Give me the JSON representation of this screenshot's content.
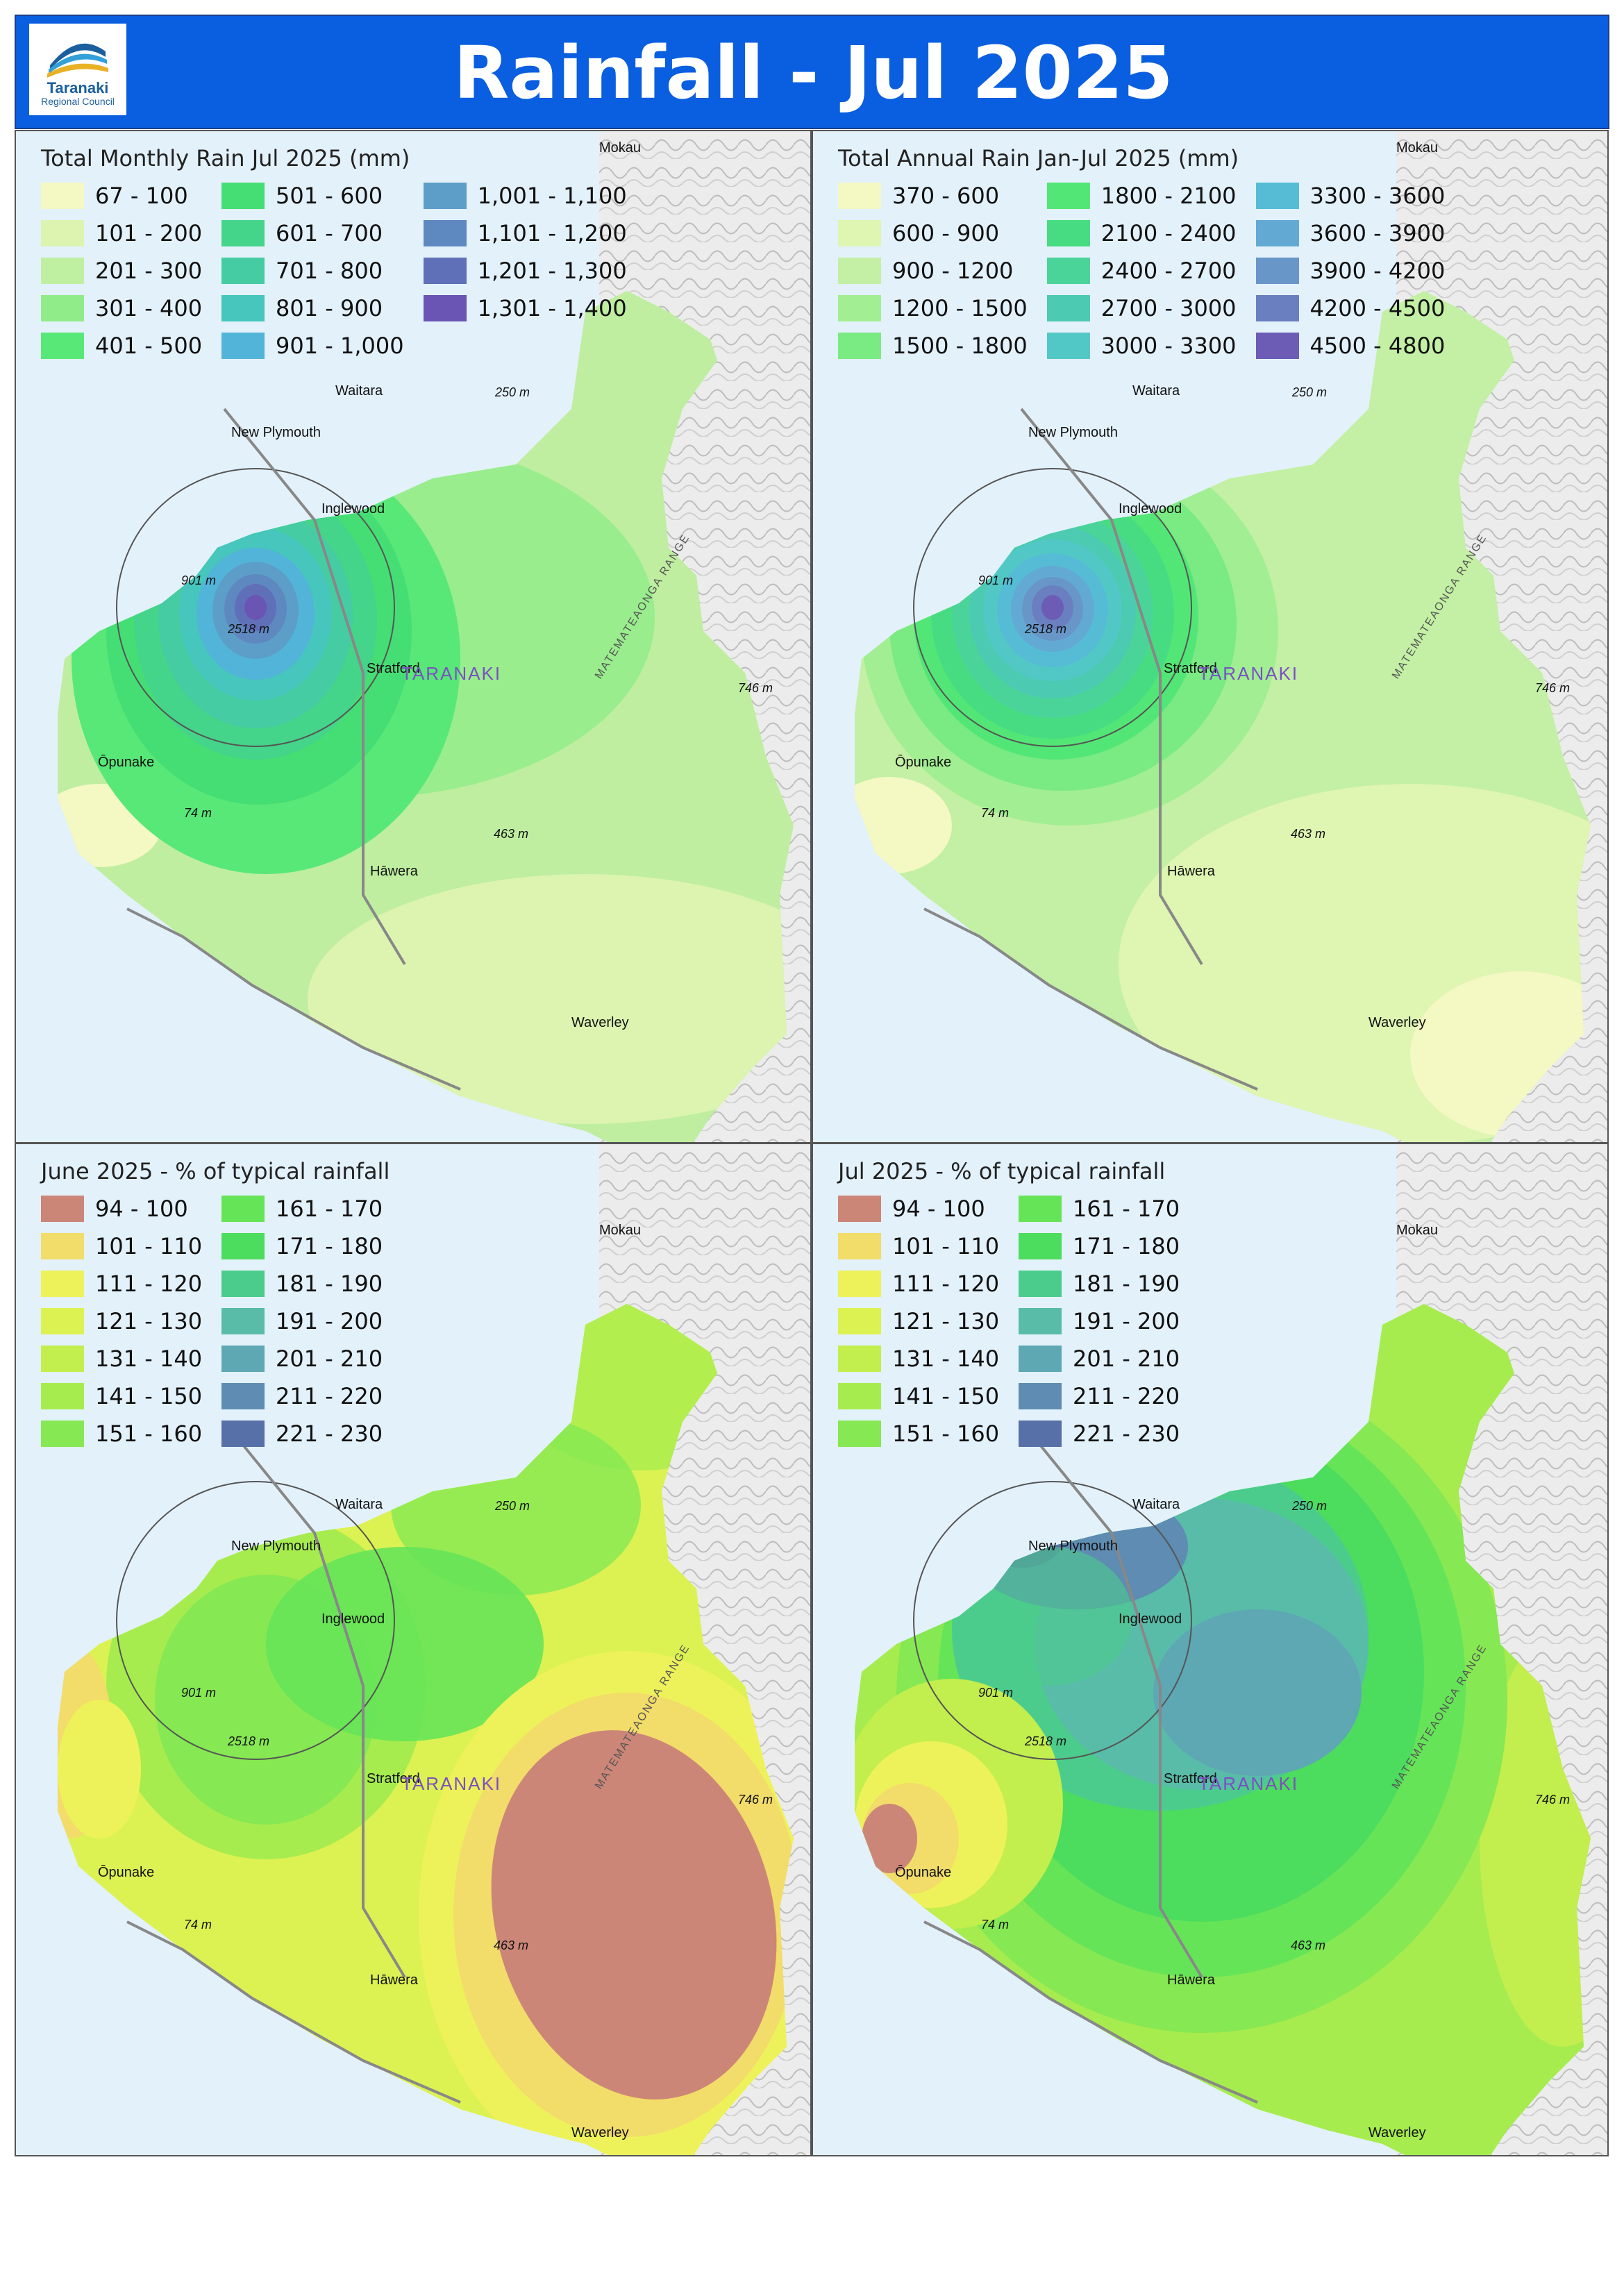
{
  "header": {
    "title": "Rainfall - Jul 2025",
    "logo_name": "Taranaki",
    "logo_sub": "Regional Council",
    "background": "#0a5ee0"
  },
  "map_labels": {
    "towns": [
      "Mokau",
      "Waitara",
      "New Plymouth",
      "Inglewood",
      "Stratford",
      "Ōpunake",
      "Hāwera",
      "Waverley"
    ],
    "elevations": [
      "250 m",
      "901 m",
      "2518 m",
      "746 m",
      "74 m",
      "463 m"
    ],
    "region": "TARANAKI",
    "range": "MATEMATEAONGA RANGE"
  },
  "panels": [
    {
      "id": "monthly",
      "title": "Total Monthly Rain Jul 2025 (mm)",
      "legend": [
        {
          "label": "67 - 100",
          "color": "#f4f8c2"
        },
        {
          "label": "101 - 200",
          "color": "#dcf4b0"
        },
        {
          "label": "201 - 300",
          "color": "#bff0a2"
        },
        {
          "label": "301 - 400",
          "color": "#90ec88"
        },
        {
          "label": "401 - 500",
          "color": "#58e878"
        },
        {
          "label": "501 - 600",
          "color": "#45de74"
        },
        {
          "label": "601 - 700",
          "color": "#44d48a"
        },
        {
          "label": "701 - 800",
          "color": "#46cca2"
        },
        {
          "label": "801 - 900",
          "color": "#46c6bc"
        },
        {
          "label": "901 - 1,000",
          "color": "#52b4d8"
        },
        {
          "label": "1,001 - 1,100",
          "color": "#5c9ec8"
        },
        {
          "label": "1,101 - 1,200",
          "color": "#5e88c0"
        },
        {
          "label": "1,201 - 1,300",
          "color": "#6070b8"
        },
        {
          "label": "1,301 - 1,400",
          "color": "#6a54b4"
        }
      ]
    },
    {
      "id": "annual",
      "title": "Total Annual Rain Jan-Jul 2025 (mm)",
      "legend": [
        {
          "label": "370 - 600",
          "color": "#f4f8c2"
        },
        {
          "label": "600 - 900",
          "color": "#dff5b2"
        },
        {
          "label": "900 - 1200",
          "color": "#c3f0a4"
        },
        {
          "label": "1200 - 1500",
          "color": "#a2ee92"
        },
        {
          "label": "1500 - 1800",
          "color": "#7aea82"
        },
        {
          "label": "1800 - 2100",
          "color": "#52e676"
        },
        {
          "label": "2100 - 2400",
          "color": "#48dc82"
        },
        {
          "label": "2400 - 2700",
          "color": "#4ad49a"
        },
        {
          "label": "2700 - 3000",
          "color": "#4ccab2"
        },
        {
          "label": "3000 - 3300",
          "color": "#52c8c6"
        },
        {
          "label": "3300 - 3600",
          "color": "#56bcd6"
        },
        {
          "label": "3600 - 3900",
          "color": "#62aad4"
        },
        {
          "label": "3900 - 4200",
          "color": "#6896c8"
        },
        {
          "label": "4200 - 4500",
          "color": "#6a7fc0"
        },
        {
          "label": "4500 - 4800",
          "color": "#6c5cb6"
        }
      ]
    },
    {
      "id": "june_pct",
      "title": "June 2025 - % of typical rainfall",
      "legend": [
        {
          "label": "94 - 100",
          "color": "#cc8677"
        },
        {
          "label": "101 - 110",
          "color": "#f2dc6a"
        },
        {
          "label": "111 - 120",
          "color": "#eef25a"
        },
        {
          "label": "121 - 130",
          "color": "#dcf252"
        },
        {
          "label": "131 - 140",
          "color": "#c2ee4e"
        },
        {
          "label": "141 - 150",
          "color": "#a6ec4e"
        },
        {
          "label": "151 - 160",
          "color": "#86e852"
        },
        {
          "label": "161 - 170",
          "color": "#66e458"
        },
        {
          "label": "171 - 180",
          "color": "#4cdc5e"
        },
        {
          "label": "181 - 190",
          "color": "#4ccc8c"
        },
        {
          "label": "191 - 200",
          "color": "#58bca8"
        },
        {
          "label": "201 - 210",
          "color": "#5ea8b4"
        },
        {
          "label": "211 - 220",
          "color": "#5e8cb2"
        },
        {
          "label": "221 - 230",
          "color": "#5870a8"
        }
      ]
    },
    {
      "id": "july_pct",
      "title": "Jul 2025 - % of typical rainfall",
      "legend": [
        {
          "label": "94 - 100",
          "color": "#cc8677"
        },
        {
          "label": "101 - 110",
          "color": "#f2dc6a"
        },
        {
          "label": "111 - 120",
          "color": "#eef25a"
        },
        {
          "label": "121 - 130",
          "color": "#dcf252"
        },
        {
          "label": "131 - 140",
          "color": "#c2ee4e"
        },
        {
          "label": "141 - 150",
          "color": "#a6ec4e"
        },
        {
          "label": "151 - 160",
          "color": "#86e852"
        },
        {
          "label": "161 - 170",
          "color": "#66e458"
        },
        {
          "label": "171 - 180",
          "color": "#4cdc5e"
        },
        {
          "label": "181 - 190",
          "color": "#4ccc8c"
        },
        {
          "label": "191 - 200",
          "color": "#58bca8"
        },
        {
          "label": "201 - 210",
          "color": "#5ea8b4"
        },
        {
          "label": "211 - 220",
          "color": "#5e8cb2"
        },
        {
          "label": "221 - 230",
          "color": "#5870a8"
        }
      ]
    }
  ]
}
